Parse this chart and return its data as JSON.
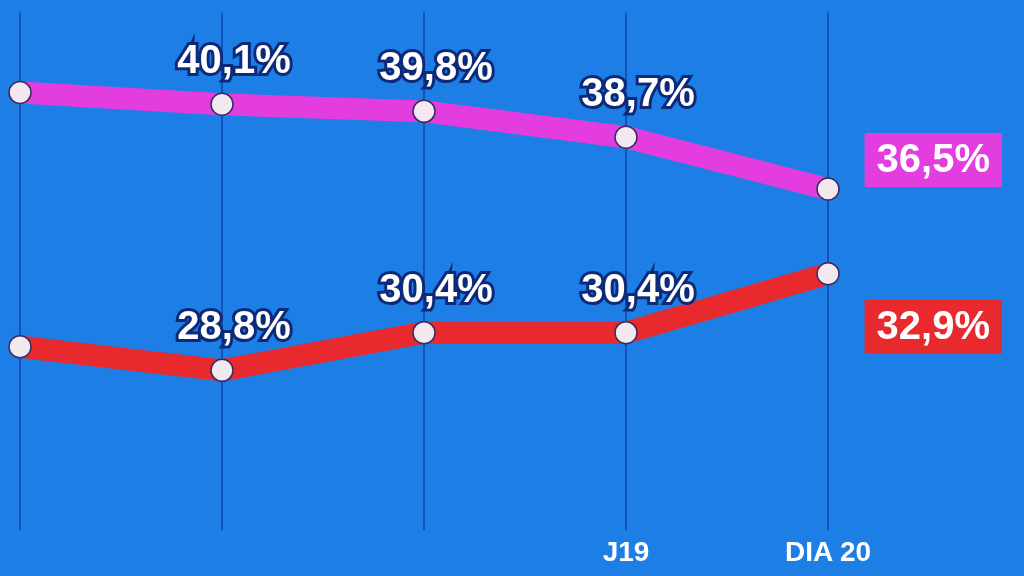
{
  "chart_data": {
    "type": "line",
    "categories": [
      null,
      null,
      null,
      "J19",
      "DIA 20"
    ],
    "series": [
      {
        "color": "#e33de0",
        "values": [
          40.6,
          40.1,
          39.8,
          38.7,
          36.5
        ],
        "value_labels": [
          null,
          "40,1%",
          "39,8%",
          "38,7%",
          "36,5%"
        ]
      },
      {
        "color": "#e82a2e",
        "values": [
          29.8,
          28.8,
          30.4,
          30.4,
          32.9
        ],
        "value_labels": [
          null,
          "28,8%",
          "30,4%",
          "30,4%",
          "32,9%"
        ]
      }
    ],
    "ylim": [
      22,
      44
    ],
    "grid": "x",
    "legend": false,
    "tick_labels": "x",
    "marker": "circle",
    "line_style": "solid"
  }
}
